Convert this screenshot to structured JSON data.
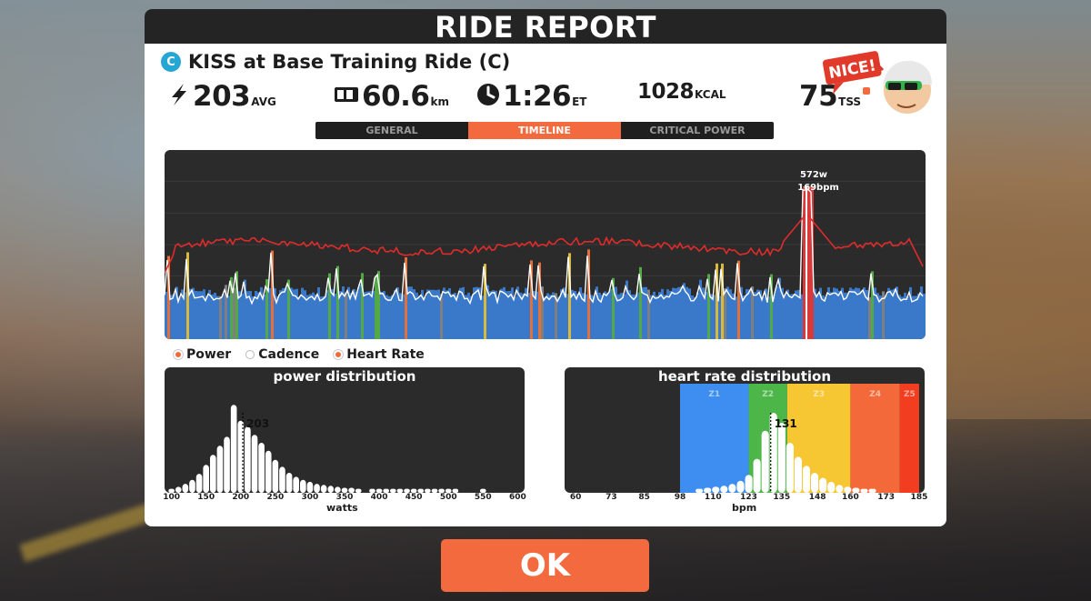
{
  "header": {
    "title": "RIDE REPORT"
  },
  "ride": {
    "category": "C",
    "name": "KISS at Base Training Ride (C)"
  },
  "stats": {
    "power": {
      "value": "203",
      "unit": "AVG",
      "icon": "lightning-icon"
    },
    "distance": {
      "value": "60.6",
      "unit": "km",
      "icon": "odometer-icon"
    },
    "time": {
      "value": "1:26",
      "unit": "ET",
      "icon": "clock-icon"
    },
    "calories": {
      "value": "1028",
      "unit": "KCAL"
    },
    "tss": {
      "value": "75",
      "unit": "TSS"
    }
  },
  "coach": {
    "bubble": "NICE!"
  },
  "tabs": [
    {
      "label": "GENERAL",
      "active": false
    },
    {
      "label": "TIMELINE",
      "active": true
    },
    {
      "label": "CRITICAL POWER",
      "active": false
    }
  ],
  "timeline": {
    "peak_power_label": "572w",
    "peak_hr_label": "169bpm",
    "colors": {
      "hr": "#e02b2b",
      "cadence": "#ffffff",
      "power_z2": "#3a78c9",
      "power_z3": "#55a846",
      "power_z4": "#d8b93b",
      "power_z5": "#e2703a",
      "power_z6": "#d83a3a",
      "power_z1": "#7f7f7f"
    }
  },
  "legend": [
    {
      "label": "Power",
      "color": "#f26a3e"
    },
    {
      "label": "Cadence",
      "color": "#ffffff"
    },
    {
      "label": "Heart Rate",
      "color": "#f26a3e"
    }
  ],
  "power_distribution": {
    "title": "power distribution",
    "avg_label": "203",
    "x_ticks": [
      "100",
      "150",
      "200",
      "250",
      "300",
      "350",
      "400",
      "450",
      "500",
      "550",
      "600"
    ],
    "x_label": "watts",
    "bins": [
      {
        "x": 100,
        "y": 4
      },
      {
        "x": 110,
        "y": 6
      },
      {
        "x": 120,
        "y": 9
      },
      {
        "x": 130,
        "y": 13
      },
      {
        "x": 140,
        "y": 19
      },
      {
        "x": 150,
        "y": 28
      },
      {
        "x": 160,
        "y": 38
      },
      {
        "x": 170,
        "y": 47
      },
      {
        "x": 180,
        "y": 56
      },
      {
        "x": 190,
        "y": 88
      },
      {
        "x": 200,
        "y": 72
      },
      {
        "x": 210,
        "y": 66
      },
      {
        "x": 220,
        "y": 58
      },
      {
        "x": 230,
        "y": 50
      },
      {
        "x": 240,
        "y": 42
      },
      {
        "x": 250,
        "y": 33
      },
      {
        "x": 260,
        "y": 26
      },
      {
        "x": 270,
        "y": 20
      },
      {
        "x": 280,
        "y": 16
      },
      {
        "x": 290,
        "y": 13
      },
      {
        "x": 300,
        "y": 11
      },
      {
        "x": 310,
        "y": 9
      },
      {
        "x": 320,
        "y": 8
      },
      {
        "x": 330,
        "y": 7
      },
      {
        "x": 340,
        "y": 6
      },
      {
        "x": 350,
        "y": 5
      },
      {
        "x": 360,
        "y": 5
      },
      {
        "x": 370,
        "y": 4
      },
      {
        "x": 390,
        "y": 4
      },
      {
        "x": 400,
        "y": 4
      },
      {
        "x": 410,
        "y": 4
      },
      {
        "x": 420,
        "y": 4
      },
      {
        "x": 430,
        "y": 4
      },
      {
        "x": 440,
        "y": 4
      },
      {
        "x": 450,
        "y": 4
      },
      {
        "x": 460,
        "y": 4
      },
      {
        "x": 470,
        "y": 4
      },
      {
        "x": 480,
        "y": 4
      },
      {
        "x": 490,
        "y": 4
      },
      {
        "x": 500,
        "y": 4
      },
      {
        "x": 510,
        "y": 4
      },
      {
        "x": 550,
        "y": 4
      }
    ]
  },
  "hr_distribution": {
    "title": "heart rate distribution",
    "avg_label": "131",
    "x_ticks": [
      "60",
      "73",
      "85",
      "98",
      "110",
      "123",
      "135",
      "148",
      "160",
      "173",
      "185"
    ],
    "x_label": "bpm",
    "zones": [
      {
        "label": "Z1",
        "from": 98,
        "to": 123,
        "color": "#3d8ef0"
      },
      {
        "label": "Z2",
        "from": 123,
        "to": 137,
        "color": "#4cb748"
      },
      {
        "label": "Z3",
        "from": 137,
        "to": 160,
        "color": "#f7c633"
      },
      {
        "label": "Z4",
        "from": 160,
        "to": 178,
        "color": "#f4693a"
      },
      {
        "label": "Z5",
        "from": 178,
        "to": 185,
        "color": "#f23d20"
      }
    ],
    "bins": [
      {
        "x": 105,
        "y": 4
      },
      {
        "x": 108,
        "y": 5
      },
      {
        "x": 111,
        "y": 6
      },
      {
        "x": 114,
        "y": 7
      },
      {
        "x": 117,
        "y": 9
      },
      {
        "x": 120,
        "y": 12
      },
      {
        "x": 123,
        "y": 18
      },
      {
        "x": 126,
        "y": 34
      },
      {
        "x": 129,
        "y": 62
      },
      {
        "x": 132,
        "y": 80
      },
      {
        "x": 135,
        "y": 70
      },
      {
        "x": 138,
        "y": 50
      },
      {
        "x": 141,
        "y": 36
      },
      {
        "x": 144,
        "y": 27
      },
      {
        "x": 147,
        "y": 20
      },
      {
        "x": 150,
        "y": 15
      },
      {
        "x": 153,
        "y": 11
      },
      {
        "x": 156,
        "y": 8
      },
      {
        "x": 159,
        "y": 6
      },
      {
        "x": 162,
        "y": 5
      },
      {
        "x": 165,
        "y": 4
      },
      {
        "x": 168,
        "y": 4
      }
    ]
  },
  "ok_button": {
    "label": "OK"
  }
}
